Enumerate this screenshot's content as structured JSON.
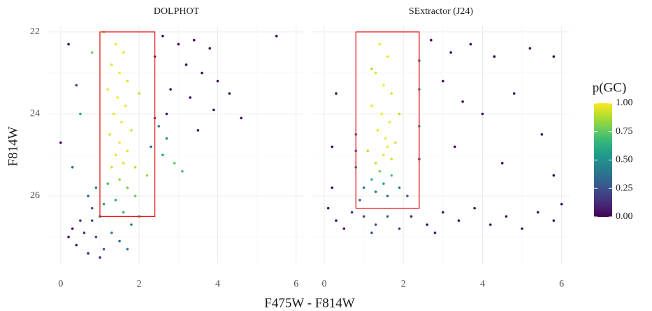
{
  "chart_data": {
    "type": "scatter",
    "xlabel": "F475W - F814W",
    "ylabel": "F814W",
    "xlim": [
      -0.3,
      6.2
    ],
    "ylim": [
      27.65,
      21.85
    ],
    "xticks": [
      0,
      2,
      4,
      6
    ],
    "yticks": [
      22,
      24,
      26
    ],
    "grid": true,
    "minor_grid": true,
    "box_color": "#e41a1c",
    "colorbar": {
      "title": "p(GC)",
      "lim": [
        0,
        1
      ],
      "colormap": "viridis",
      "ticks": [
        {
          "value": 0,
          "label": "0.00"
        },
        {
          "value": 0.25,
          "label": "0.25"
        },
        {
          "value": 0.5,
          "label": "0.50"
        },
        {
          "value": 0.75,
          "label": "0.75"
        },
        {
          "value": 1,
          "label": "1.00"
        }
      ]
    },
    "panels": [
      {
        "name": "DOLPHOT",
        "box": {
          "x": [
            1.0,
            2.4
          ],
          "y": [
            22,
            26.5
          ]
        },
        "x": [
          1.4,
          1.6,
          1.3,
          1.5,
          1.7,
          1.2,
          1.45,
          1.65,
          1.35,
          1.55,
          1.8,
          1.25,
          1.5,
          1.7,
          1.4,
          1.6,
          1.9,
          1.3,
          1.1,
          2.0,
          1.5,
          1.2,
          1.7,
          1.9,
          1.4,
          1.1,
          1.6,
          2.0,
          1.8,
          1.3,
          1.5,
          1.7,
          0.9,
          0.7,
          0.8,
          0.5,
          0.6,
          0.9,
          0.4,
          0.7,
          1.0,
          0.3,
          0.2,
          1.1,
          0.8,
          1.0,
          0.0,
          0.5,
          0.4,
          0.8,
          0.2,
          0.3,
          2.6,
          3.0,
          3.4,
          3.8,
          3.2,
          3.6,
          4.0,
          2.8,
          3.3,
          3.9,
          4.3,
          2.7,
          3.5,
          4.6,
          5.5,
          2.4,
          2.5,
          2.7,
          2.6,
          2.9,
          3.1,
          2.3,
          2.2,
          2.4
        ],
        "values": [
          22.3,
          22.5,
          22.8,
          23.0,
          23.2,
          23.4,
          23.6,
          23.8,
          24.0,
          24.2,
          24.4,
          24.5,
          24.7,
          24.9,
          25.0,
          25.2,
          25.3,
          25.3,
          22.0,
          23.5,
          25.6,
          25.7,
          25.8,
          26.0,
          26.1,
          26.2,
          26.4,
          26.5,
          26.7,
          26.9,
          27.1,
          27.3,
          25.8,
          26.0,
          26.3,
          26.6,
          26.9,
          27.0,
          27.2,
          27.4,
          27.5,
          26.8,
          27.0,
          27.3,
          26.6,
          26.5,
          24.7,
          24.0,
          23.3,
          22.5,
          22.3,
          25.3,
          22.1,
          22.3,
          22.2,
          22.4,
          22.8,
          23.0,
          23.2,
          23.4,
          23.6,
          23.9,
          23.5,
          24.0,
          24.4,
          24.1,
          22.1,
          22.6,
          24.3,
          24.6,
          25.0,
          25.2,
          25.4,
          24.8,
          25.5,
          24.1
        ],
        "p": [
          0.98,
          0.97,
          0.96,
          0.99,
          0.95,
          0.97,
          0.99,
          0.98,
          0.97,
          0.99,
          0.94,
          0.96,
          0.99,
          0.97,
          0.98,
          0.95,
          0.9,
          0.92,
          0.85,
          0.9,
          0.85,
          0.7,
          0.8,
          0.75,
          0.6,
          0.55,
          0.65,
          0.6,
          0.45,
          0.4,
          0.35,
          0.38,
          0.45,
          0.3,
          0.25,
          0.15,
          0.12,
          0.2,
          0.05,
          0.08,
          0.1,
          0.03,
          0.02,
          0.25,
          0.22,
          0.35,
          0.02,
          0.6,
          0.15,
          0.8,
          0.02,
          0.4,
          0.02,
          0.01,
          0.02,
          0.01,
          0.02,
          0.01,
          0.02,
          0.03,
          0.02,
          0.01,
          0.02,
          0.05,
          0.02,
          0.01,
          0.01,
          0.1,
          0.45,
          0.5,
          0.6,
          0.75,
          0.7,
          0.35,
          0.85,
          0.25
        ]
      },
      {
        "name": "SExtractor (J24)",
        "box": {
          "x": [
            0.8,
            2.4
          ],
          "y": [
            22,
            26.3
          ]
        },
        "x": [
          1.4,
          1.6,
          1.3,
          1.5,
          1.7,
          1.2,
          1.45,
          1.65,
          1.35,
          1.55,
          1.8,
          1.1,
          1.5,
          1.7,
          1.3,
          1.6,
          1.9,
          1.2,
          1.4,
          1.7,
          1.2,
          1.5,
          1.9,
          1.0,
          1.3,
          1.6,
          2.1,
          0.9,
          0.8,
          0.8,
          0.8,
          2.4,
          2.4,
          2.4,
          2.4,
          0.1,
          0.3,
          0.5,
          0.7,
          1.0,
          1.3,
          1.6,
          1.9,
          2.2,
          2.6,
          3.0,
          3.4,
          3.8,
          4.2,
          4.6,
          5.0,
          5.4,
          5.8,
          6.0,
          0.2,
          2.8,
          1.2,
          2.7,
          3.2,
          3.7,
          4.3,
          5.2,
          5.8,
          3.0,
          3.5,
          4.0,
          4.8,
          5.5,
          3.3,
          4.5,
          5.8,
          0.3,
          0.2
        ],
        "values": [
          22.3,
          22.6,
          23.0,
          23.3,
          23.5,
          23.8,
          24.0,
          24.2,
          24.4,
          24.6,
          24.7,
          24.9,
          25.0,
          25.1,
          25.2,
          24.8,
          24.0,
          22.9,
          25.4,
          25.5,
          25.6,
          25.7,
          25.8,
          25.8,
          25.9,
          26.0,
          26.0,
          26.1,
          24.5,
          24.9,
          25.3,
          22.7,
          23.4,
          24.3,
          25.1,
          26.3,
          26.6,
          26.8,
          26.4,
          26.5,
          26.7,
          26.5,
          26.8,
          26.5,
          26.7,
          26.4,
          26.6,
          26.3,
          26.7,
          26.5,
          26.8,
          26.4,
          26.6,
          26.2,
          25.8,
          26.9,
          26.9,
          22.2,
          22.5,
          22.3,
          22.6,
          22.4,
          22.6,
          23.2,
          23.7,
          24.0,
          23.5,
          24.5,
          24.8,
          25.2,
          25.5,
          23.5,
          24.8
        ],
        "p": [
          0.97,
          0.98,
          0.96,
          0.99,
          0.95,
          0.97,
          0.99,
          0.98,
          0.97,
          0.99,
          0.94,
          0.9,
          0.98,
          0.93,
          0.92,
          0.97,
          0.9,
          0.88,
          0.8,
          0.72,
          0.65,
          0.6,
          0.5,
          0.45,
          0.4,
          0.35,
          0.3,
          0.28,
          0.3,
          0.35,
          0.4,
          0.4,
          0.45,
          0.5,
          0.3,
          0.02,
          0.03,
          0.05,
          0.1,
          0.2,
          0.25,
          0.28,
          0.2,
          0.1,
          0.04,
          0.03,
          0.02,
          0.02,
          0.02,
          0.01,
          0.01,
          0.01,
          0.01,
          0.01,
          0.03,
          0.03,
          0.22,
          0.01,
          0.01,
          0.01,
          0.01,
          0.01,
          0.01,
          0.01,
          0.01,
          0.01,
          0.01,
          0.01,
          0.01,
          0.01,
          0.01,
          0.02,
          0.02
        ]
      }
    ]
  }
}
